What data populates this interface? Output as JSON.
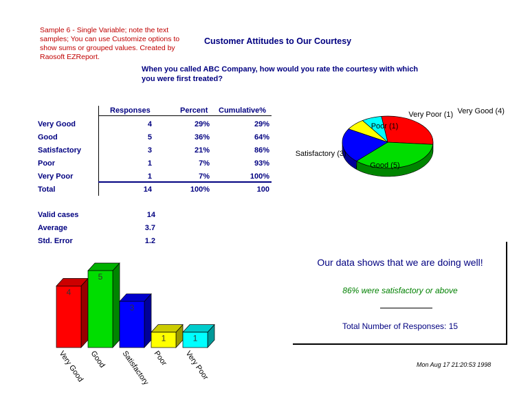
{
  "note": "Sample 6 - Single Variable; note the text samples; You can use Customize options to show sums or grouped values. Created by Raosoft EZReport.",
  "report_title": "Customer Attitudes to Our Courtesy",
  "question": "When you called ABC Company, how would you rate the courtesy with which you were first treated?",
  "table": {
    "headers": {
      "responses": "Responses",
      "percent": "Percent",
      "cumulative": "Cumulative%"
    },
    "rows": [
      {
        "label": "Very Good",
        "responses": "4",
        "percent": "29%",
        "cumulative": "29%"
      },
      {
        "label": "Good",
        "responses": "5",
        "percent": "36%",
        "cumulative": "64%"
      },
      {
        "label": "Satisfactory",
        "responses": "3",
        "percent": "21%",
        "cumulative": "86%"
      },
      {
        "label": "Poor",
        "responses": "1",
        "percent": "7%",
        "cumulative": "93%"
      },
      {
        "label": "Very Poor",
        "responses": "1",
        "percent": "7%",
        "cumulative": "100%"
      }
    ],
    "total": {
      "label": "Total",
      "responses": "14",
      "percent": "100%",
      "cumulative": "100"
    }
  },
  "stats": [
    {
      "label": "Valid cases",
      "value": "14"
    },
    {
      "label": "Average",
      "value": "3.7"
    },
    {
      "label": "Std. Error",
      "value": "1.2"
    }
  ],
  "summary": {
    "headline": "Our data shows that we are doing well!",
    "subline": "86% were satisfactory or above",
    "total_text": "Total Number of Responses: 15"
  },
  "timestamp": "Mon Aug 17 21:20:53 1998",
  "chart_data": [
    {
      "type": "pie",
      "title": "",
      "labels": [
        "Very Good (4)",
        "Good (5)",
        "Satisfactory (3)",
        "Poor (1)",
        "Very Poor (1)"
      ],
      "values": [
        4,
        5,
        3,
        1,
        1
      ],
      "colors": [
        "#ff0000",
        "#00dd00",
        "#0000ff",
        "#ffff00",
        "#00ffff"
      ]
    },
    {
      "type": "bar",
      "title": "",
      "categories": [
        "Very Good",
        "Good",
        "Satisfactory",
        "Poor",
        "Very Poor"
      ],
      "values": [
        4,
        5,
        3,
        1,
        1
      ],
      "data_labels": [
        "4",
        "5",
        "3",
        "1",
        "1"
      ],
      "colors": [
        "#ff0000",
        "#00dd00",
        "#0000ff",
        "#ffff00",
        "#00ffff"
      ]
    }
  ]
}
